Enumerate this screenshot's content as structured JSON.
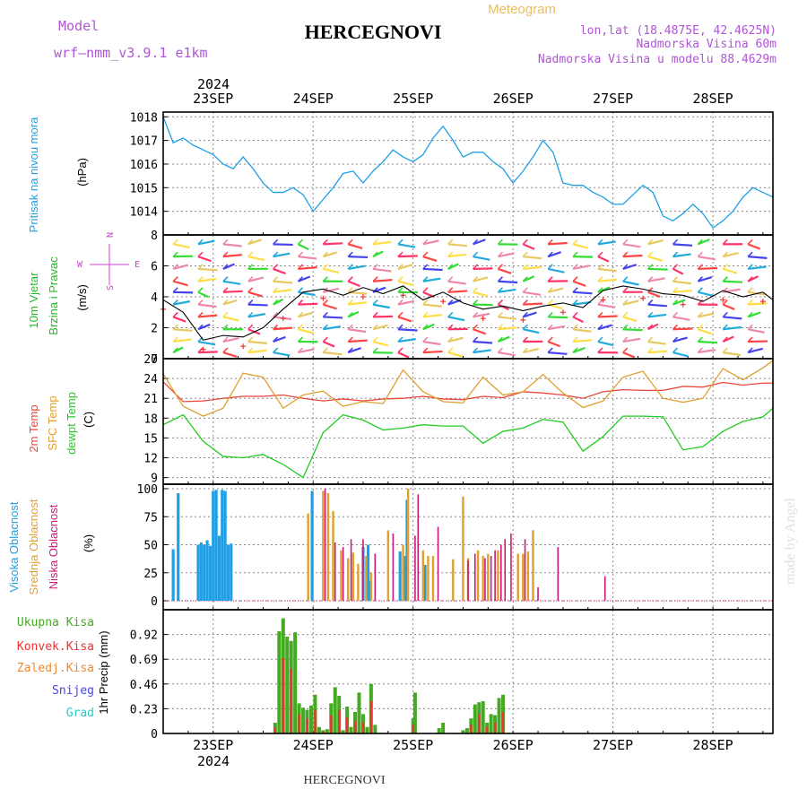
{
  "header": {
    "model_label": "Model",
    "model_name": "wrf—nmm_v3.9.1  e1km",
    "station_title": "HERCEGNOVI",
    "meteogram_label": "Meteogram",
    "lonlat": "lon,lat (18.4875E, 42.4625N)",
    "elevation": "Nadmorska Visina 60m",
    "model_elevation": "Nadmorska Visina u modelu 88.4629m",
    "footer_station": "HERCEGNOVI",
    "watermark": "made by Angel"
  },
  "time_axis": {
    "year": "2024",
    "days": [
      "23SEP",
      "24SEP",
      "25SEP",
      "26SEP",
      "27SEP",
      "28SEP"
    ],
    "range_days": [
      0,
      6.1
    ],
    "day_positions": [
      0.5,
      1.5,
      2.5,
      3.5,
      4.5,
      5.5
    ]
  },
  "colors": {
    "pressure": "#1ea0e6",
    "temp2m": "#e8473a",
    "sfc_temp": "#e0a030",
    "dewpt": "#22cc22",
    "high_cloud": "#1ea0e6",
    "mid_cloud": "#e0a030",
    "low_cloud": "#cc1a7a",
    "precip_total": "#44aa22",
    "precip_conv": "#ee3333",
    "precip_frontal": "#ee8833",
    "snow": "#4444ee",
    "hail": "#22cccc",
    "wind_legend": "#cc44cc",
    "grid": "#888888"
  },
  "chart_data": [
    {
      "type": "line",
      "name": "pressure",
      "ylabel_parts": [
        "Pritisak na nivou mora",
        "(hPa)"
      ],
      "ylim": [
        1013,
        1018.2
      ],
      "yticks": [
        1014,
        1015,
        1016,
        1017,
        1018
      ],
      "x": [
        0.0,
        0.1,
        0.2,
        0.3,
        0.4,
        0.5,
        0.6,
        0.7,
        0.8,
        0.9,
        1.0,
        1.1,
        1.2,
        1.3,
        1.4,
        1.5,
        1.6,
        1.7,
        1.8,
        1.9,
        2.0,
        2.1,
        2.2,
        2.3,
        2.4,
        2.5,
        2.6,
        2.7,
        2.8,
        2.9,
        3.0,
        3.1,
        3.2,
        3.3,
        3.4,
        3.5,
        3.6,
        3.7,
        3.8,
        3.9,
        4.0,
        4.1,
        4.2,
        4.3,
        4.4,
        4.5,
        4.6,
        4.7,
        4.8,
        4.9,
        5.0,
        5.1,
        5.2,
        5.3,
        5.4,
        5.5,
        5.6,
        5.7,
        5.8,
        5.9,
        6.0,
        6.1
      ],
      "values": [
        1018.0,
        1016.9,
        1017.1,
        1016.8,
        1016.6,
        1016.4,
        1016.0,
        1015.8,
        1016.3,
        1015.8,
        1015.2,
        1014.8,
        1014.8,
        1015.0,
        1014.7,
        1014.0,
        1014.5,
        1015.0,
        1015.6,
        1015.7,
        1015.2,
        1015.7,
        1016.1,
        1016.6,
        1016.3,
        1016.1,
        1016.4,
        1017.1,
        1017.6,
        1017.0,
        1016.3,
        1016.5,
        1016.5,
        1016.1,
        1015.8,
        1015.2,
        1015.7,
        1016.3,
        1017.0,
        1016.5,
        1015.2,
        1015.1,
        1015.1,
        1014.8,
        1014.6,
        1014.3,
        1014.3,
        1014.7,
        1015.1,
        1014.8,
        1013.8,
        1013.6,
        1013.9,
        1014.3,
        1013.9,
        1013.3,
        1013.6,
        1014.0,
        1014.6,
        1015.0,
        1014.8,
        1014.6
      ]
    },
    {
      "type": "line",
      "name": "wind",
      "ylabel_parts": [
        "10m Vjetar",
        "Brzina i Pravac",
        "(m/s)"
      ],
      "compass_labels": [
        "N",
        "W",
        "E",
        "S"
      ],
      "ylim": [
        0,
        8
      ],
      "yticks": [
        0,
        2,
        4,
        6,
        8
      ],
      "x": [
        0.0,
        0.2,
        0.4,
        0.6,
        0.8,
        1.0,
        1.2,
        1.4,
        1.6,
        1.8,
        2.0,
        2.2,
        2.4,
        2.6,
        2.8,
        3.0,
        3.2,
        3.4,
        3.6,
        3.8,
        4.0,
        4.2,
        4.4,
        4.6,
        4.8,
        5.0,
        5.2,
        5.4,
        5.6,
        5.8,
        6.0,
        6.1
      ],
      "values": [
        3.8,
        3.0,
        1.2,
        1.5,
        1.4,
        2.0,
        3.2,
        4.3,
        4.5,
        4.1,
        4.6,
        4.2,
        4.7,
        3.8,
        4.3,
        3.6,
        3.2,
        3.4,
        3.1,
        3.4,
        3.6,
        3.3,
        4.4,
        4.7,
        4.5,
        4.2,
        4.1,
        3.7,
        4.4,
        4.0,
        4.3,
        3.8
      ],
      "barb_rows": [
        0.4,
        1.1,
        1.9,
        2.7,
        3.5,
        4.3,
        5.0,
        5.8,
        6.6,
        7.4
      ],
      "barb_columns_x": [
        0.1,
        0.35,
        0.6,
        0.85,
        1.1,
        1.35,
        1.6,
        1.85,
        2.1,
        2.35,
        2.6,
        2.85,
        3.1,
        3.35,
        3.6,
        3.85,
        4.1,
        4.35,
        4.6,
        4.85,
        5.1,
        5.35,
        5.6,
        5.85
      ]
    },
    {
      "type": "line",
      "name": "temperature",
      "ylabel_parts": [
        "2m Temp",
        "SFC Temp",
        "dewpt Temp",
        "(C)"
      ],
      "ylim": [
        8,
        27
      ],
      "yticks": [
        9,
        12,
        15,
        18,
        21,
        24,
        27
      ],
      "series": [
        {
          "name": "2m Temp",
          "color_key": "temp2m",
          "x": [
            0.0,
            0.2,
            0.4,
            0.6,
            0.8,
            1.0,
            1.2,
            1.4,
            1.6,
            1.8,
            2.0,
            2.2,
            2.4,
            2.6,
            2.8,
            3.0,
            3.2,
            3.4,
            3.6,
            3.8,
            4.0,
            4.2,
            4.4,
            4.6,
            4.8,
            5.0,
            5.2,
            5.4,
            5.6,
            5.8,
            6.0,
            6.1
          ],
          "values": [
            23.5,
            20.5,
            20.6,
            21.0,
            21.3,
            21.3,
            21.5,
            21.0,
            20.6,
            20.9,
            20.6,
            20.9,
            21.0,
            21.3,
            20.9,
            20.8,
            21.3,
            21.1,
            22.0,
            21.8,
            21.5,
            21.0,
            22.0,
            22.3,
            22.2,
            22.2,
            22.8,
            22.7,
            23.4,
            23.0,
            23.3,
            23.3
          ]
        },
        {
          "name": "SFC Temp",
          "color_key": "sfc_temp",
          "x": [
            0.0,
            0.2,
            0.4,
            0.6,
            0.8,
            1.0,
            1.2,
            1.4,
            1.6,
            1.8,
            2.0,
            2.2,
            2.4,
            2.6,
            2.8,
            3.0,
            3.2,
            3.4,
            3.6,
            3.8,
            4.0,
            4.2,
            4.4,
            4.6,
            4.8,
            5.0,
            5.2,
            5.4,
            5.6,
            5.8,
            6.0,
            6.1
          ],
          "values": [
            24.7,
            19.8,
            18.3,
            19.5,
            24.8,
            24.2,
            19.5,
            21.5,
            22.1,
            19.8,
            20.5,
            20.2,
            25.3,
            22.0,
            20.5,
            20.3,
            24.2,
            21.5,
            22.0,
            24.6,
            21.8,
            19.6,
            20.6,
            24.2,
            25.1,
            21.0,
            20.4,
            21.0,
            25.5,
            23.8,
            25.6,
            26.7
          ]
        },
        {
          "name": "dewpt Temp",
          "color_key": "dewpt",
          "x": [
            0.0,
            0.2,
            0.4,
            0.6,
            0.8,
            1.0,
            1.2,
            1.4,
            1.6,
            1.8,
            2.0,
            2.2,
            2.4,
            2.6,
            2.8,
            3.0,
            3.2,
            3.4,
            3.6,
            3.8,
            4.0,
            4.2,
            4.4,
            4.6,
            4.8,
            5.0,
            5.2,
            5.4,
            5.6,
            5.8,
            6.0,
            6.1
          ],
          "values": [
            17.0,
            18.5,
            14.5,
            12.2,
            12.0,
            12.5,
            11.0,
            9.0,
            15.8,
            18.5,
            17.7,
            16.2,
            16.5,
            17.0,
            16.8,
            16.8,
            14.2,
            16.0,
            16.5,
            17.8,
            17.4,
            13.0,
            15.2,
            18.3,
            18.3,
            18.2,
            13.2,
            13.7,
            16.0,
            17.5,
            18.2,
            19.5
          ]
        }
      ]
    },
    {
      "type": "bar",
      "name": "cloud",
      "ylabel_parts": [
        "Visoka Oblacnost",
        "Srednja Oblacnost",
        "Niska Oblacnost",
        "(%)"
      ],
      "ylim": [
        -8,
        104
      ],
      "yticks": [
        0,
        25,
        50,
        75,
        100
      ],
      "series": [
        {
          "name": "Visoka Oblacnost",
          "color_key": "high_cloud",
          "x": [
            0.1,
            0.15,
            0.35,
            0.38,
            0.41,
            0.44,
            0.47,
            0.5,
            0.53,
            0.56,
            0.59,
            0.62,
            0.65,
            0.68,
            1.49,
            2.0,
            2.05,
            2.07,
            2.37,
            2.42,
            2.44,
            2.62
          ],
          "values": [
            46,
            96,
            50,
            52,
            50,
            54,
            49,
            98,
            99,
            58,
            99,
            98,
            50,
            51,
            98,
            48,
            50,
            18,
            44,
            40,
            90,
            32
          ]
        },
        {
          "name": "Srednja Oblacnost",
          "color_key": "mid_cloud",
          "x": [
            1.45,
            1.6,
            1.65,
            1.7,
            1.78,
            1.85,
            1.9,
            1.95,
            2.03,
            2.08,
            2.25,
            2.4,
            2.45,
            2.6,
            2.65,
            2.7,
            2.9,
            3.0,
            3.05,
            3.15,
            3.2,
            3.25,
            3.35,
            3.55,
            3.6,
            3.65,
            3.7
          ],
          "values": [
            78,
            98,
            96,
            80,
            45,
            38,
            43,
            33,
            40,
            25,
            63,
            50,
            100,
            45,
            40,
            40,
            37,
            93,
            38,
            45,
            40,
            42,
            45,
            42,
            42,
            44,
            63
          ]
        },
        {
          "name": "Niska Oblacnost",
          "color_key": "low_cloud",
          "x": [
            1.62,
            1.72,
            1.8,
            1.88,
            2.0,
            2.12,
            2.3,
            2.52,
            2.55,
            2.75,
            3.05,
            3.12,
            3.22,
            3.28,
            3.32,
            3.38,
            3.42,
            3.48,
            3.62,
            3.75,
            3.95,
            4.42
          ],
          "values": [
            100,
            52,
            48,
            55,
            55,
            42,
            60,
            58,
            95,
            66,
            36,
            42,
            38,
            40,
            45,
            50,
            55,
            60,
            55,
            12,
            48,
            22
          ]
        }
      ]
    },
    {
      "type": "bar",
      "name": "precipitation",
      "ylabel": "1hr Precip (mm)",
      "legend": [
        "Ukupna Kisa",
        "Konvek.Kisa",
        "Zaledj.Kisa",
        "Snijeg",
        "Grad"
      ],
      "ylim": [
        0,
        1.15
      ],
      "yticks": [
        0,
        0.23,
        0.46,
        0.69,
        0.92
      ],
      "ytick_labels": [
        "0",
        "0.23",
        "0.46",
        "0.69",
        "0.92"
      ],
      "series": [
        {
          "name": "Ukupna Kisa",
          "color_key": "precip_total",
          "x": [
            1.12,
            1.16,
            1.2,
            1.24,
            1.28,
            1.32,
            1.36,
            1.4,
            1.44,
            1.48,
            1.52,
            1.56,
            1.6,
            1.64,
            1.68,
            1.72,
            1.76,
            1.8,
            1.84,
            1.88,
            1.92,
            1.96,
            2.0,
            2.04,
            2.08,
            2.12,
            2.5,
            2.52,
            2.76,
            2.8,
            3.0,
            3.04,
            3.08,
            3.12,
            3.16,
            3.2,
            3.24,
            3.28,
            3.32,
            3.36,
            3.4
          ],
          "values": [
            0.1,
            0.95,
            1.07,
            0.9,
            0.86,
            0.94,
            0.28,
            0.24,
            0.22,
            0.26,
            0.36,
            0.06,
            0.03,
            0.04,
            0.28,
            0.43,
            0.35,
            0.03,
            0.25,
            0.06,
            0.2,
            0.38,
            0.18,
            0.06,
            0.46,
            0.08,
            0.14,
            0.38,
            0.05,
            0.1,
            0.03,
            0.05,
            0.14,
            0.27,
            0.29,
            0.3,
            0.1,
            0.18,
            0.17,
            0.33,
            0.36
          ]
        },
        {
          "name": "Konvek.Kisa",
          "color_key": "precip_conv",
          "x": [
            1.12,
            1.2,
            1.28,
            1.36,
            1.44,
            1.52,
            1.6,
            1.68,
            1.76,
            1.84,
            1.92,
            2.0,
            2.08,
            2.5,
            3.08,
            3.16,
            3.24,
            3.32,
            3.4
          ],
          "values": [
            0.06,
            0.7,
            0.6,
            0.18,
            0.14,
            0.22,
            0.02,
            0.17,
            0.22,
            0.15,
            0.12,
            0.1,
            0.3,
            0.08,
            0.08,
            0.18,
            0.06,
            0.1,
            0.2
          ]
        }
      ]
    }
  ]
}
